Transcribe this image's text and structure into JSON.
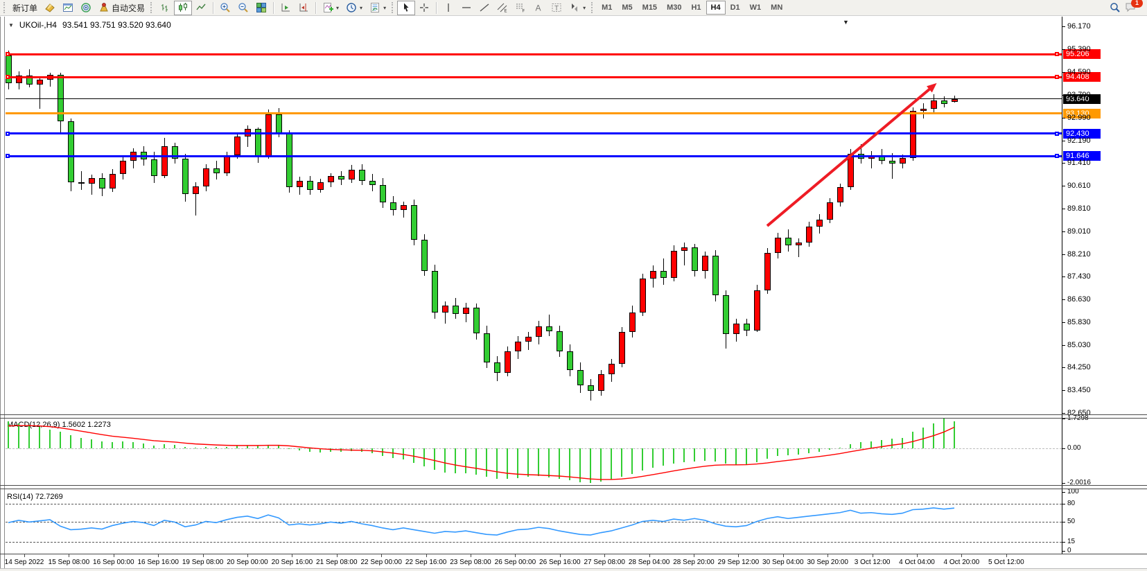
{
  "toolbar": {
    "new_order_label": "新订单",
    "autotrading_label": "自动交易",
    "timeframes": [
      "M1",
      "M5",
      "M15",
      "M30",
      "H1",
      "H4",
      "D1",
      "W1",
      "MN"
    ],
    "active_timeframe": "H4",
    "notification_count": "1"
  },
  "chart": {
    "title": "UKOil-,H4",
    "ohlc": "93.541 93.751 93.520 93.640"
  },
  "chart_data": [
    {
      "type": "candlestick",
      "symbol": "UKOil-",
      "timeframe": "H4",
      "title": "UKOil-,H4  93.541 93.751 93.520 93.640",
      "up_color": "#FF0000",
      "down_color": "#32CD32",
      "ylim": [
        82.63,
        96.3
      ],
      "y_ticks": [
        "96.170",
        "95.390",
        "94.590",
        "93.790",
        "92.990",
        "92.190",
        "91.410",
        "90.610",
        "89.810",
        "89.010",
        "88.210",
        "87.430",
        "86.630",
        "85.830",
        "85.030",
        "84.250",
        "83.450",
        "82.650"
      ],
      "x_labels": [
        "14 Sep 2022",
        "15 Sep 08:00",
        "16 Sep 00:00",
        "16 Sep 16:00",
        "19 Sep 08:00",
        "20 Sep 00:00",
        "20 Sep 16:00",
        "21 Sep 08:00",
        "22 Sep 00:00",
        "22 Sep 16:00",
        "23 Sep 08:00",
        "26 Sep 00:00",
        "26 Sep 16:00",
        "27 Sep 08:00",
        "28 Sep 04:00",
        "28 Sep 20:00",
        "29 Sep 12:00",
        "30 Sep 04:00",
        "30 Sep 20:00",
        "3 Oct 12:00",
        "4 Oct 04:00",
        "4 Oct 20:00",
        "5 Oct 12:00"
      ],
      "candles": [
        [
          95.15,
          95.32,
          93.98,
          94.18
        ],
        [
          94.18,
          94.6,
          93.98,
          94.45
        ],
        [
          94.45,
          94.68,
          94.05,
          94.15
        ],
        [
          94.15,
          94.4,
          93.3,
          94.32
        ],
        [
          94.32,
          94.55,
          94.08,
          94.48
        ],
        [
          94.48,
          94.55,
          92.45,
          92.85
        ],
        [
          92.85,
          92.95,
          90.4,
          90.72
        ],
        [
          90.72,
          91.12,
          90.45,
          90.68
        ],
        [
          90.68,
          91.0,
          90.3,
          90.88
        ],
        [
          90.88,
          91.05,
          90.25,
          90.5
        ],
        [
          90.5,
          91.18,
          90.38,
          91.02
        ],
        [
          91.02,
          91.62,
          90.82,
          91.48
        ],
        [
          91.48,
          91.92,
          91.22,
          91.78
        ],
        [
          91.78,
          91.98,
          91.3,
          91.52
        ],
        [
          91.52,
          91.8,
          90.7,
          90.95
        ],
        [
          90.95,
          92.28,
          90.88,
          91.98
        ],
        [
          91.98,
          92.1,
          91.38,
          91.55
        ],
        [
          91.55,
          91.72,
          90.05,
          90.32
        ],
        [
          90.32,
          90.72,
          89.55,
          90.58
        ],
        [
          90.58,
          91.35,
          90.42,
          91.22
        ],
        [
          91.22,
          91.48,
          90.82,
          91.05
        ],
        [
          91.05,
          91.78,
          90.95,
          91.68
        ],
        [
          91.68,
          92.48,
          91.55,
          92.32
        ],
        [
          92.32,
          92.72,
          91.95,
          92.58
        ],
        [
          92.58,
          92.65,
          91.4,
          91.62
        ],
        [
          91.62,
          93.28,
          91.55,
          93.1
        ],
        [
          93.1,
          93.32,
          92.3,
          92.45
        ],
        [
          92.45,
          92.55,
          90.35,
          90.55
        ],
        [
          90.55,
          90.92,
          90.28,
          90.78
        ],
        [
          90.78,
          90.95,
          90.3,
          90.45
        ],
        [
          90.45,
          90.85,
          90.35,
          90.72
        ],
        [
          90.72,
          91.05,
          90.55,
          90.95
        ],
        [
          90.95,
          91.12,
          90.62,
          90.82
        ],
        [
          90.82,
          91.32,
          90.7,
          91.15
        ],
        [
          91.15,
          91.35,
          90.62,
          90.78
        ],
        [
          90.78,
          91.02,
          90.42,
          90.62
        ],
        [
          90.62,
          90.88,
          89.82,
          90.02
        ],
        [
          90.02,
          90.25,
          89.55,
          89.75
        ],
        [
          89.75,
          90.05,
          89.48,
          89.92
        ],
        [
          89.92,
          90.12,
          88.52,
          88.72
        ],
        [
          88.72,
          88.9,
          87.45,
          87.62
        ],
        [
          87.62,
          87.85,
          85.95,
          86.18
        ],
        [
          86.18,
          86.55,
          85.78,
          86.42
        ],
        [
          86.42,
          86.68,
          85.95,
          86.12
        ],
        [
          86.12,
          86.5,
          85.82,
          86.35
        ],
        [
          86.35,
          86.48,
          85.22,
          85.45
        ],
        [
          85.45,
          85.72,
          84.22,
          84.42
        ],
        [
          84.42,
          84.65,
          83.78,
          84.05
        ],
        [
          84.05,
          84.98,
          83.95,
          84.82
        ],
        [
          84.82,
          85.35,
          84.55,
          85.15
        ],
        [
          85.15,
          85.48,
          84.85,
          85.32
        ],
        [
          85.32,
          85.88,
          85.05,
          85.68
        ],
        [
          85.68,
          86.1,
          85.35,
          85.52
        ],
        [
          85.52,
          85.72,
          84.62,
          84.82
        ],
        [
          84.82,
          85.05,
          83.95,
          84.15
        ],
        [
          84.15,
          84.42,
          83.35,
          83.62
        ],
        [
          83.62,
          83.85,
          83.08,
          83.42
        ],
        [
          83.42,
          84.15,
          83.25,
          84.02
        ],
        [
          84.02,
          84.55,
          83.75,
          84.38
        ],
        [
          84.38,
          85.65,
          84.25,
          85.48
        ],
        [
          85.48,
          86.42,
          85.3,
          86.18
        ],
        [
          86.18,
          87.52,
          86.05,
          87.35
        ],
        [
          87.35,
          87.82,
          87.05,
          87.62
        ],
        [
          87.62,
          88.05,
          87.15,
          87.38
        ],
        [
          87.38,
          88.52,
          87.25,
          88.32
        ],
        [
          88.32,
          88.62,
          87.82,
          88.45
        ],
        [
          88.45,
          88.58,
          87.42,
          87.62
        ],
        [
          87.62,
          88.3,
          87.35,
          88.15
        ],
        [
          88.15,
          88.35,
          86.55,
          86.78
        ],
        [
          86.78,
          86.95,
          84.92,
          85.42
        ],
        [
          85.42,
          85.95,
          85.15,
          85.78
        ],
        [
          85.78,
          85.95,
          85.35,
          85.55
        ],
        [
          85.55,
          87.15,
          85.48,
          86.95
        ],
        [
          86.95,
          88.42,
          86.82,
          88.25
        ],
        [
          88.25,
          88.95,
          88.05,
          88.78
        ],
        [
          88.78,
          89.08,
          88.3,
          88.52
        ],
        [
          88.52,
          88.75,
          88.1,
          88.62
        ],
        [
          88.62,
          89.35,
          88.48,
          89.18
        ],
        [
          89.18,
          89.62,
          88.92,
          89.42
        ],
        [
          89.42,
          90.18,
          89.3,
          90.02
        ],
        [
          90.02,
          90.68,
          89.88,
          90.55
        ],
        [
          90.55,
          91.88,
          90.45,
          91.72
        ],
        [
          91.72,
          92.05,
          91.38,
          91.55
        ],
        [
          91.55,
          91.82,
          91.2,
          91.68
        ],
        [
          91.68,
          91.88,
          91.35,
          91.48
        ],
        [
          91.48,
          91.75,
          90.85,
          91.38
        ],
        [
          91.38,
          91.7,
          91.22,
          91.58
        ],
        [
          91.58,
          93.35,
          91.48,
          93.22
        ],
        [
          93.22,
          93.48,
          92.95,
          93.3
        ],
        [
          93.3,
          93.8,
          93.12,
          93.58
        ],
        [
          93.58,
          93.72,
          93.35,
          93.46
        ],
        [
          93.541,
          93.751,
          93.52,
          93.64
        ]
      ],
      "horizontal_lines": [
        {
          "price": 95.206,
          "label": "95.206",
          "color": "#FF0000",
          "thickness": 3,
          "selected": true
        },
        {
          "price": 94.408,
          "label": "94.408",
          "color": "#FF0000",
          "thickness": 3,
          "selected": true
        },
        {
          "price": 93.64,
          "label": "93.640",
          "color": "#000000",
          "thickness": 1,
          "selected": false,
          "role": "current-price"
        },
        {
          "price": 93.13,
          "label": "93.130",
          "color": "#FF9900",
          "thickness": 3,
          "selected": false
        },
        {
          "price": 92.43,
          "label": "92.430",
          "color": "#0000FF",
          "thickness": 3,
          "selected": true
        },
        {
          "price": 91.646,
          "label": "91.646",
          "color": "#0000FF",
          "thickness": 3,
          "selected": true
        }
      ],
      "annotations": [
        {
          "type": "trend-arrow",
          "color": "#EE1C25",
          "from_index": 73,
          "from_price": 89.2,
          "to_index": 89,
          "to_price": 94.1
        }
      ]
    },
    {
      "type": "bar",
      "name": "MACD",
      "label": "MACD(12,26,9) 1.5602 1.2273",
      "macd_value": "1.5602",
      "signal_value": "1.2273",
      "y_ticks": [
        "1.7298",
        "0.00",
        "-2.0016"
      ],
      "ylim": [
        -2.0016,
        1.7298
      ],
      "histogram_color": "#32CD32",
      "signal_color": "#FF0000",
      "histogram": [
        1.55,
        1.45,
        1.35,
        1.25,
        1.1,
        0.95,
        0.75,
        0.62,
        0.52,
        0.42,
        0.38,
        0.4,
        0.35,
        0.28,
        0.18,
        0.25,
        0.2,
        0.1,
        0.06,
        0.1,
        0.08,
        0.1,
        0.15,
        0.18,
        0.15,
        0.22,
        0.18,
        0.02,
        -0.12,
        -0.2,
        -0.22,
        -0.2,
        -0.18,
        -0.15,
        -0.18,
        -0.28,
        -0.42,
        -0.55,
        -0.65,
        -0.85,
        -1.05,
        -1.25,
        -1.38,
        -1.42,
        -1.45,
        -1.52,
        -1.65,
        -1.75,
        -1.78,
        -1.72,
        -1.65,
        -1.62,
        -1.68,
        -1.75,
        -1.85,
        -1.95,
        -2.0016,
        -1.92,
        -1.8,
        -1.65,
        -1.48,
        -1.28,
        -1.1,
        -1.0,
        -0.88,
        -0.8,
        -0.74,
        -0.7,
        -0.75,
        -0.88,
        -0.95,
        -0.92,
        -0.78,
        -0.6,
        -0.45,
        -0.4,
        -0.34,
        -0.26,
        -0.18,
        -0.08,
        0.06,
        0.25,
        0.35,
        0.42,
        0.5,
        0.55,
        0.62,
        0.95,
        1.2,
        1.45,
        1.7298,
        1.5602
      ],
      "signal": [
        1.3,
        1.32,
        1.32,
        1.3,
        1.26,
        1.19,
        1.1,
        1.0,
        0.9,
        0.8,
        0.71,
        0.65,
        0.59,
        0.52,
        0.45,
        0.41,
        0.37,
        0.31,
        0.26,
        0.23,
        0.2,
        0.18,
        0.17,
        0.17,
        0.17,
        0.18,
        0.18,
        0.15,
        0.09,
        0.03,
        -0.02,
        -0.06,
        -0.08,
        -0.1,
        -0.11,
        -0.14,
        -0.2,
        -0.27,
        -0.35,
        -0.45,
        -0.57,
        -0.7,
        -0.84,
        -0.96,
        -1.06,
        -1.15,
        -1.25,
        -1.35,
        -1.44,
        -1.49,
        -1.52,
        -1.54,
        -1.57,
        -1.6,
        -1.65,
        -1.71,
        -1.77,
        -1.8,
        -1.8,
        -1.77,
        -1.71,
        -1.62,
        -1.52,
        -1.41,
        -1.3,
        -1.2,
        -1.11,
        -1.03,
        -0.97,
        -0.95,
        -0.95,
        -0.94,
        -0.9,
        -0.84,
        -0.76,
        -0.69,
        -0.62,
        -0.54,
        -0.47,
        -0.39,
        -0.3,
        -0.19,
        -0.09,
        0.01,
        0.1,
        0.19,
        0.27,
        0.4,
        0.56,
        0.74,
        0.95,
        1.2273
      ]
    },
    {
      "type": "line",
      "name": "RSI",
      "label": "RSI(14) 72.7269",
      "current_value": "72.7269",
      "y_ticks": [
        "100",
        "80",
        "50",
        "15",
        "0"
      ],
      "levels": [
        80,
        50,
        15
      ],
      "ylim": [
        0,
        100
      ],
      "line_color": "#3399FF",
      "values": [
        48,
        52,
        49,
        51,
        53,
        42,
        36,
        37,
        39,
        37,
        43,
        47,
        50,
        48,
        43,
        52,
        49,
        41,
        44,
        50,
        48,
        53,
        57,
        59,
        55,
        61,
        56,
        44,
        46,
        44,
        46,
        49,
        47,
        50,
        46,
        43,
        39,
        36,
        39,
        36,
        33,
        30,
        33,
        32,
        34,
        31,
        28,
        27,
        32,
        36,
        37,
        40,
        38,
        34,
        31,
        28,
        27,
        31,
        34,
        39,
        44,
        50,
        52,
        50,
        54,
        52,
        55,
        52,
        46,
        42,
        41,
        43,
        50,
        55,
        58,
        55,
        57,
        59,
        61,
        63,
        65,
        69,
        64,
        65,
        63,
        62,
        64,
        70,
        71,
        73,
        71,
        72.7269
      ]
    }
  ]
}
